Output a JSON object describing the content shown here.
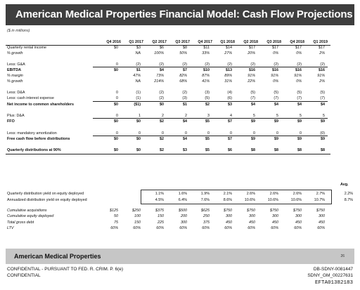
{
  "title": "American Medical Properties Financial Model: Cash Flow Projections",
  "units": "($ in millions)",
  "columns": [
    "Q4 2016",
    "Q1 2017",
    "Q2 2017",
    "Q3 2017",
    "Q4 2017",
    "Q1 2018",
    "Q2 2018",
    "Q3 2018",
    "Q4 2018",
    "Q1 2019"
  ],
  "rows": [
    {
      "label": "Quarterly rental income",
      "style": "",
      "values": [
        "$0",
        "$3",
        "$6",
        "$8",
        "$11",
        "$14",
        "$17",
        "$17",
        "$17",
        "$17"
      ]
    },
    {
      "label": "% growth",
      "style": "ital",
      "values": [
        "",
        "NA",
        "100%",
        "50%",
        "33%",
        "27%",
        "20%",
        "0%",
        "0%",
        "2%"
      ]
    },
    {
      "label": "Less: G&A",
      "style": "",
      "values": [
        "0",
        "(2)",
        "(2)",
        "(2)",
        "(2)",
        "(2)",
        "(2)",
        "(2)",
        "(2)",
        "(2)"
      ]
    },
    {
      "label": "EBITDA",
      "style": "bold",
      "values": [
        "$0",
        "$1",
        "$4",
        "$7",
        "$10",
        "$13",
        "$16",
        "$16",
        "$16",
        "$16"
      ]
    },
    {
      "label": "% margin",
      "style": "ital",
      "values": [
        "",
        "47%",
        "73%",
        "82%",
        "87%",
        "89%",
        "91%",
        "91%",
        "91%",
        "91%"
      ]
    },
    {
      "label": "% growth",
      "style": "ital",
      "values": [
        "",
        "NA",
        "214%",
        "68%",
        "41%",
        "31%",
        "22%",
        "0%",
        "0%",
        "2%"
      ]
    },
    {
      "label": "Less: D&A",
      "style": "",
      "values": [
        "0",
        "(1)",
        "(2)",
        "(2)",
        "(3)",
        "(4)",
        "(5)",
        "(5)",
        "(5)",
        "(5)"
      ]
    },
    {
      "label": "Less: cash interest expense",
      "style": "",
      "values": [
        "0",
        "(1)",
        "(2)",
        "(3)",
        "(5)",
        "(6)",
        "(7)",
        "(7)",
        "(7)",
        "(7)"
      ]
    },
    {
      "label": "Net income to common shareholders",
      "style": "bold",
      "values": [
        "$0",
        "($1)",
        "$0",
        "$1",
        "$2",
        "$3",
        "$4",
        "$4",
        "$4",
        "$4"
      ]
    },
    {
      "label": "Plus: D&A",
      "style": "",
      "values": [
        "0",
        "1",
        "2",
        "2",
        "3",
        "4",
        "5",
        "5",
        "5",
        "5"
      ]
    },
    {
      "label": "FFO",
      "style": "bold",
      "values": [
        "$0",
        "$0",
        "$2",
        "$4",
        "$5",
        "$7",
        "$9",
        "$9",
        "$9",
        "$9"
      ]
    },
    {
      "label": "Less: mandatory amortization",
      "style": "",
      "values": [
        "0",
        "0",
        "0",
        "0",
        "0",
        "0",
        "0",
        "0",
        "0",
        "(0)"
      ]
    },
    {
      "label": "Free cash flow before distributions",
      "style": "bold",
      "values": [
        "$0",
        "$0",
        "$2",
        "$4",
        "$5",
        "$7",
        "$9",
        "$9",
        "$9",
        "$9"
      ]
    },
    {
      "label": "Quarterly distributions at 90%",
      "style": "bold",
      "values": [
        "$0",
        "$0",
        "$2",
        "$3",
        "$5",
        "$6",
        "$8",
        "$8",
        "$8",
        "$8"
      ]
    },
    {
      "label": "Quarterly distribution yield on equity deployed",
      "style": "",
      "values": [
        "",
        "",
        "1.1%",
        "1.6%",
        "1.9%",
        "2.1%",
        "2.6%",
        "2.6%",
        "2.6%",
        "2.7%"
      ],
      "avg": "2.2%"
    },
    {
      "label": "Annualized distribution yield on equity deployed",
      "style": "",
      "values": [
        "",
        "",
        "4.5%",
        "6.4%",
        "7.6%",
        "8.6%",
        "10.6%",
        "10.6%",
        "10.6%",
        "10.7%"
      ],
      "avg": "8.7%"
    },
    {
      "label": "Cumulative acquisitions",
      "style": "ital",
      "values": [
        "$125",
        "$250",
        "$375",
        "$500",
        "$625",
        "$750",
        "$750",
        "$750",
        "$750",
        "$750"
      ]
    },
    {
      "label": "Cumulative equity deployed",
      "style": "ital",
      "values": [
        "50",
        "100",
        "150",
        "200",
        "250",
        "300",
        "300",
        "300",
        "300",
        "300"
      ]
    },
    {
      "label": "Total gross debt",
      "style": "ital",
      "values": [
        "75",
        "150",
        "225",
        "300",
        "375",
        "450",
        "450",
        "450",
        "450",
        "450"
      ]
    },
    {
      "label": "LTV",
      "style": "ital",
      "values": [
        "60%",
        "60%",
        "60%",
        "60%",
        "60%",
        "60%",
        "60%",
        "60%",
        "60%",
        "60%"
      ]
    }
  ],
  "avg_label": "Avg.",
  "footer": {
    "company": "American Medical Properties",
    "page": "26"
  },
  "confidential": {
    "line1": "CONFIDENTIAL - PURSUANT TO FED. R. CRIM. P. 6(e)",
    "line2": "CONFIDENTIAL"
  },
  "bates": {
    "line1": "DB-SDNY-0081447",
    "line2": "SDNY_GM_00227631",
    "line3": "EFTA01382183"
  }
}
